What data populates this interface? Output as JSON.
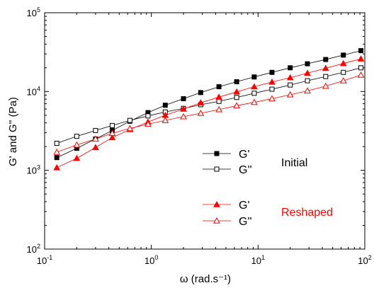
{
  "chart_data": {
    "type": "line",
    "xscale": "log",
    "yscale": "log",
    "xlim": [
      0.1,
      100
    ],
    "ylim": [
      100,
      100000
    ],
    "xlabel": "ω (rad.s⁻¹)",
    "ylabel": "G' and G'' (Pa)",
    "x_tick_labels": [
      {
        "value": 0.1,
        "base": "10",
        "exp": "-1"
      },
      {
        "value": 1,
        "base": "10",
        "exp": "0"
      },
      {
        "value": 10,
        "base": "10",
        "exp": "1"
      },
      {
        "value": 100,
        "base": "10",
        "exp": "2"
      }
    ],
    "y_tick_labels": [
      {
        "value": 100,
        "base": "10",
        "exp": "2"
      },
      {
        "value": 1000,
        "base": "10",
        "exp": "3"
      },
      {
        "value": 10000,
        "base": "10",
        "exp": "4"
      },
      {
        "value": 100000,
        "base": "10",
        "exp": "5"
      }
    ],
    "x": [
      0.13,
      0.2,
      0.3,
      0.43,
      0.63,
      0.93,
      1.35,
      2.0,
      2.9,
      4.3,
      6.3,
      9.2,
      13.5,
      20,
      29,
      43,
      63,
      92
    ],
    "series": [
      {
        "name": "G'",
        "group": "Initial",
        "marker": "square-filled",
        "color": "#000000",
        "values": [
          1450,
          1900,
          2500,
          3200,
          4200,
          5400,
          6700,
          8100,
          9700,
          11500,
          13300,
          15300,
          17500,
          20000,
          22500,
          25500,
          29000,
          33000
        ]
      },
      {
        "name": "G''",
        "group": "Initial",
        "marker": "square-open",
        "color": "#000000",
        "values": [
          2200,
          2700,
          3200,
          3700,
          4300,
          4900,
          5500,
          6100,
          6800,
          7500,
          8400,
          9500,
          10700,
          12100,
          13700,
          15500,
          17500,
          20000
        ]
      },
      {
        "name": "G'",
        "group": "Reshaped",
        "marker": "triangle-filled",
        "color": "#ff0000",
        "values": [
          1080,
          1420,
          1950,
          2600,
          3300,
          4100,
          5000,
          6000,
          7200,
          8500,
          9900,
          11500,
          13200,
          15000,
          17100,
          19700,
          22700,
          26000
        ]
      },
      {
        "name": "G''",
        "group": "Reshaped",
        "marker": "triangle-open",
        "color": "#ff0000",
        "values": [
          1700,
          2100,
          2500,
          2950,
          3400,
          3850,
          4300,
          4800,
          5300,
          5900,
          6600,
          7300,
          8100,
          9100,
          10200,
          11700,
          13700,
          16200
        ]
      }
    ],
    "legend": [
      {
        "group_label": "Initial",
        "group_color": "#000000",
        "entries": [
          {
            "label": "G'",
            "marker": "square-filled",
            "color": "#000000"
          },
          {
            "label": "G''",
            "marker": "square-open",
            "color": "#000000"
          }
        ]
      },
      {
        "group_label": "Reshaped",
        "group_color": "#ff0000",
        "entries": [
          {
            "label": "G'",
            "marker": "triangle-filled",
            "color": "#ff0000"
          },
          {
            "label": "G''",
            "marker": "triangle-open",
            "color": "#ff0000"
          }
        ]
      }
    ],
    "grid": false,
    "legend_position": "center-right"
  }
}
